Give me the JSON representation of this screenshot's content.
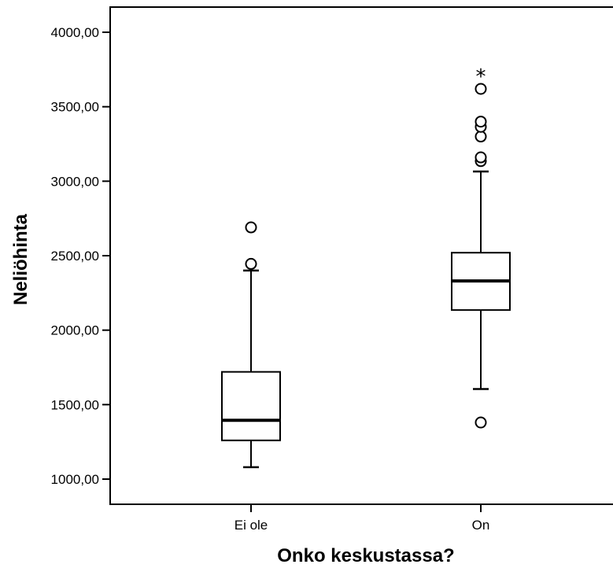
{
  "chart_data": {
    "type": "boxplot",
    "xlabel": "Onko keskustassa?",
    "ylabel": "Neliöhinta",
    "ylim": [
      920,
      4170
    ],
    "yticks": [
      {
        "value": 1000,
        "label": "1000,00"
      },
      {
        "value": 1500,
        "label": "1500,00"
      },
      {
        "value": 2000,
        "label": "2000,00"
      },
      {
        "value": 2500,
        "label": "2500,00"
      },
      {
        "value": 3000,
        "label": "3000,00"
      },
      {
        "value": 3500,
        "label": "3500,00"
      },
      {
        "value": 4000,
        "label": "4000,00"
      }
    ],
    "grid": false,
    "legend": "none",
    "groups": [
      {
        "category": "Ei ole",
        "whisker_low": 1080,
        "q1": 1260,
        "median": 1395,
        "q3": 1720,
        "whisker_high": 2400,
        "outliers": [
          2445,
          2690
        ],
        "extremes": []
      },
      {
        "category": "On",
        "whisker_low": 1605,
        "q1": 2135,
        "median": 2330,
        "q3": 2520,
        "whisker_high": 3065,
        "outliers": [
          1380,
          3135,
          3160,
          3300,
          3365,
          3400,
          3620
        ],
        "extremes": [
          3730
        ]
      }
    ]
  }
}
